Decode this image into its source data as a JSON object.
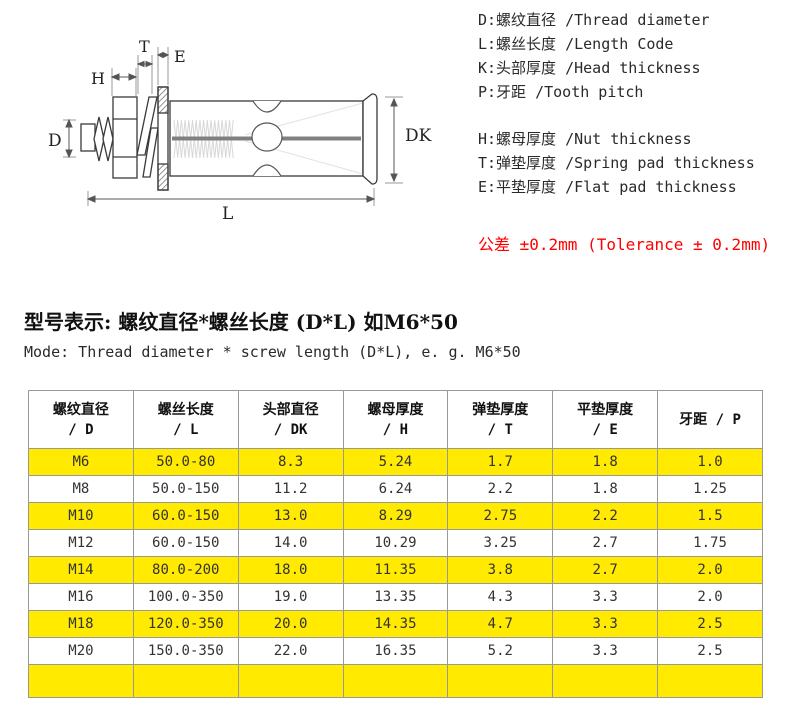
{
  "diagram": {
    "labels": {
      "d": "D",
      "h": "H",
      "t": "T",
      "e": "E",
      "dk": "DK",
      "l": "L"
    }
  },
  "legend": {
    "group1": [
      "D:螺纹直径 /Thread diameter",
      "L:螺丝长度 /Length Code",
      "K:头部厚度 /Head thickness",
      "P:牙距 /Tooth pitch"
    ],
    "group2": [
      "H:螺母厚度 /Nut thickness",
      "T:弹垫厚度 /Spring pad thickness",
      "E:平垫厚度 /Flat pad thickness"
    ],
    "tolerance": "公差 ±0.2mm (Tolerance ± 0.2mm)",
    "tolerance_color": "#ff0000"
  },
  "mode": {
    "title": "型号表示: 螺纹直径*螺丝长度 (D*L)  如M6*50",
    "subtitle": "Mode: Thread diameter * screw length (D*L), e. g. M6*50"
  },
  "table": {
    "highlight_color": "#ffea00",
    "headers": [
      {
        "line1": "螺纹直径",
        "line2": "/ D"
      },
      {
        "line1": "螺丝长度",
        "line2": "/ L"
      },
      {
        "line1": "头部直径",
        "line2": "/ DK"
      },
      {
        "line1": "螺母厚度",
        "line2": "/ H"
      },
      {
        "line1": "弹垫厚度",
        "line2": "/ T"
      },
      {
        "line1": "平垫厚度",
        "line2": "/ E"
      },
      {
        "line1": "牙距 / P",
        "line2": ""
      }
    ],
    "rows": [
      {
        "highlight": true,
        "cells": [
          "M6",
          "50.0-80",
          "8.3",
          "5.24",
          "1.7",
          "1.8",
          "1.0"
        ]
      },
      {
        "highlight": false,
        "cells": [
          "M8",
          "50.0-150",
          "11.2",
          "6.24",
          "2.2",
          "1.8",
          "1.25"
        ]
      },
      {
        "highlight": true,
        "cells": [
          "M10",
          "60.0-150",
          "13.0",
          "8.29",
          "2.75",
          "2.2",
          "1.5"
        ]
      },
      {
        "highlight": false,
        "cells": [
          "M12",
          "60.0-150",
          "14.0",
          "10.29",
          "3.25",
          "2.7",
          "1.75"
        ]
      },
      {
        "highlight": true,
        "cells": [
          "M14",
          "80.0-200",
          "18.0",
          "11.35",
          "3.8",
          "2.7",
          "2.0"
        ]
      },
      {
        "highlight": false,
        "cells": [
          "M16",
          "100.0-350",
          "19.0",
          "13.35",
          "4.3",
          "3.3",
          "2.0"
        ]
      },
      {
        "highlight": true,
        "cells": [
          "M18",
          "120.0-350",
          "20.0",
          "14.35",
          "4.7",
          "3.3",
          "2.5"
        ]
      },
      {
        "highlight": false,
        "cells": [
          "M20",
          "150.0-350",
          "22.0",
          "16.35",
          "5.2",
          "3.3",
          "2.5"
        ]
      },
      {
        "highlight": true,
        "cells": [
          "",
          "",
          "",
          "",
          "",
          "",
          ""
        ]
      }
    ]
  }
}
